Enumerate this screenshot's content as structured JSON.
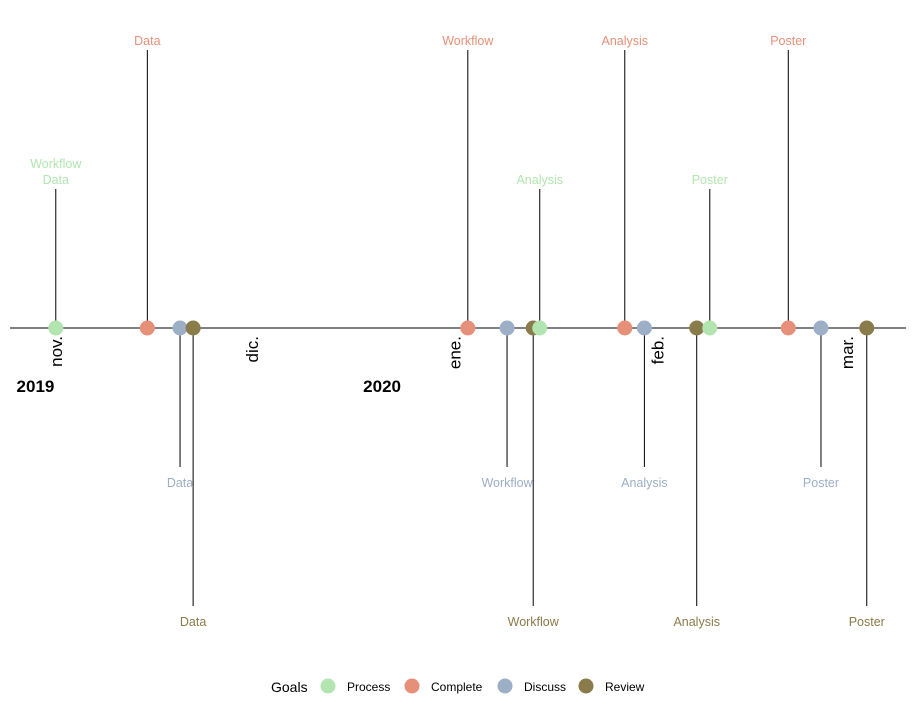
{
  "chart_data": {
    "type": "timeline",
    "title": "",
    "xlabel": "",
    "ylabel": "",
    "grid": false,
    "legend_position": "bottom",
    "x_range": [
      "2019-10-25",
      "2020-03-10"
    ],
    "month_ticks": [
      {
        "date": "2019-11-01",
        "label": "nov."
      },
      {
        "date": "2019-12-01",
        "label": "dic."
      },
      {
        "date": "2020-01-01",
        "label": "ene."
      },
      {
        "date": "2020-02-01",
        "label": "feb."
      },
      {
        "date": "2020-03-01",
        "label": "mar."
      }
    ],
    "year_labels": [
      {
        "date": "2019-10-26",
        "label": "2019"
      },
      {
        "date": "2019-12-18",
        "label": "2020"
      }
    ],
    "legend": {
      "title": "Goals",
      "entries": [
        {
          "key": "process",
          "label": "Process",
          "color": "#b2e5b0"
        },
        {
          "key": "complete",
          "label": "Complete",
          "color": "#e69079"
        },
        {
          "key": "discuss",
          "label": "Discuss",
          "color": "#9daec7"
        },
        {
          "key": "review",
          "label": "Review",
          "color": "#8a7b4a"
        }
      ]
    },
    "events": [
      {
        "date": "2019-11-01",
        "status": "process",
        "level": 0.5,
        "label": "Workflow\nData"
      },
      {
        "date": "2019-11-15",
        "status": "complete",
        "level": 1.0,
        "label": "Data"
      },
      {
        "date": "2019-11-20",
        "status": "discuss",
        "level": -0.5,
        "label": "Data"
      },
      {
        "date": "2019-11-22",
        "status": "review",
        "level": -1.0,
        "label": "Data"
      },
      {
        "date": "2020-01-03",
        "status": "complete",
        "level": 1.0,
        "label": "Workflow"
      },
      {
        "date": "2020-01-09",
        "status": "discuss",
        "level": -0.5,
        "label": "Workflow"
      },
      {
        "date": "2020-01-13",
        "status": "review",
        "level": -1.0,
        "label": "Workflow"
      },
      {
        "date": "2020-01-14",
        "status": "process",
        "level": 0.5,
        "label": "Analysis"
      },
      {
        "date": "2020-01-27",
        "status": "complete",
        "level": 1.0,
        "label": "Analysis"
      },
      {
        "date": "2020-01-30",
        "status": "discuss",
        "level": -0.5,
        "label": "Analysis"
      },
      {
        "date": "2020-02-07",
        "status": "review",
        "level": -1.0,
        "label": "Analysis"
      },
      {
        "date": "2020-02-09",
        "status": "process",
        "level": 0.5,
        "label": "Poster"
      },
      {
        "date": "2020-02-21",
        "status": "complete",
        "level": 1.0,
        "label": "Poster"
      },
      {
        "date": "2020-02-26",
        "status": "discuss",
        "level": -0.5,
        "label": "Poster"
      },
      {
        "date": "2020-03-04",
        "status": "review",
        "level": -1.0,
        "label": "Poster"
      }
    ]
  }
}
